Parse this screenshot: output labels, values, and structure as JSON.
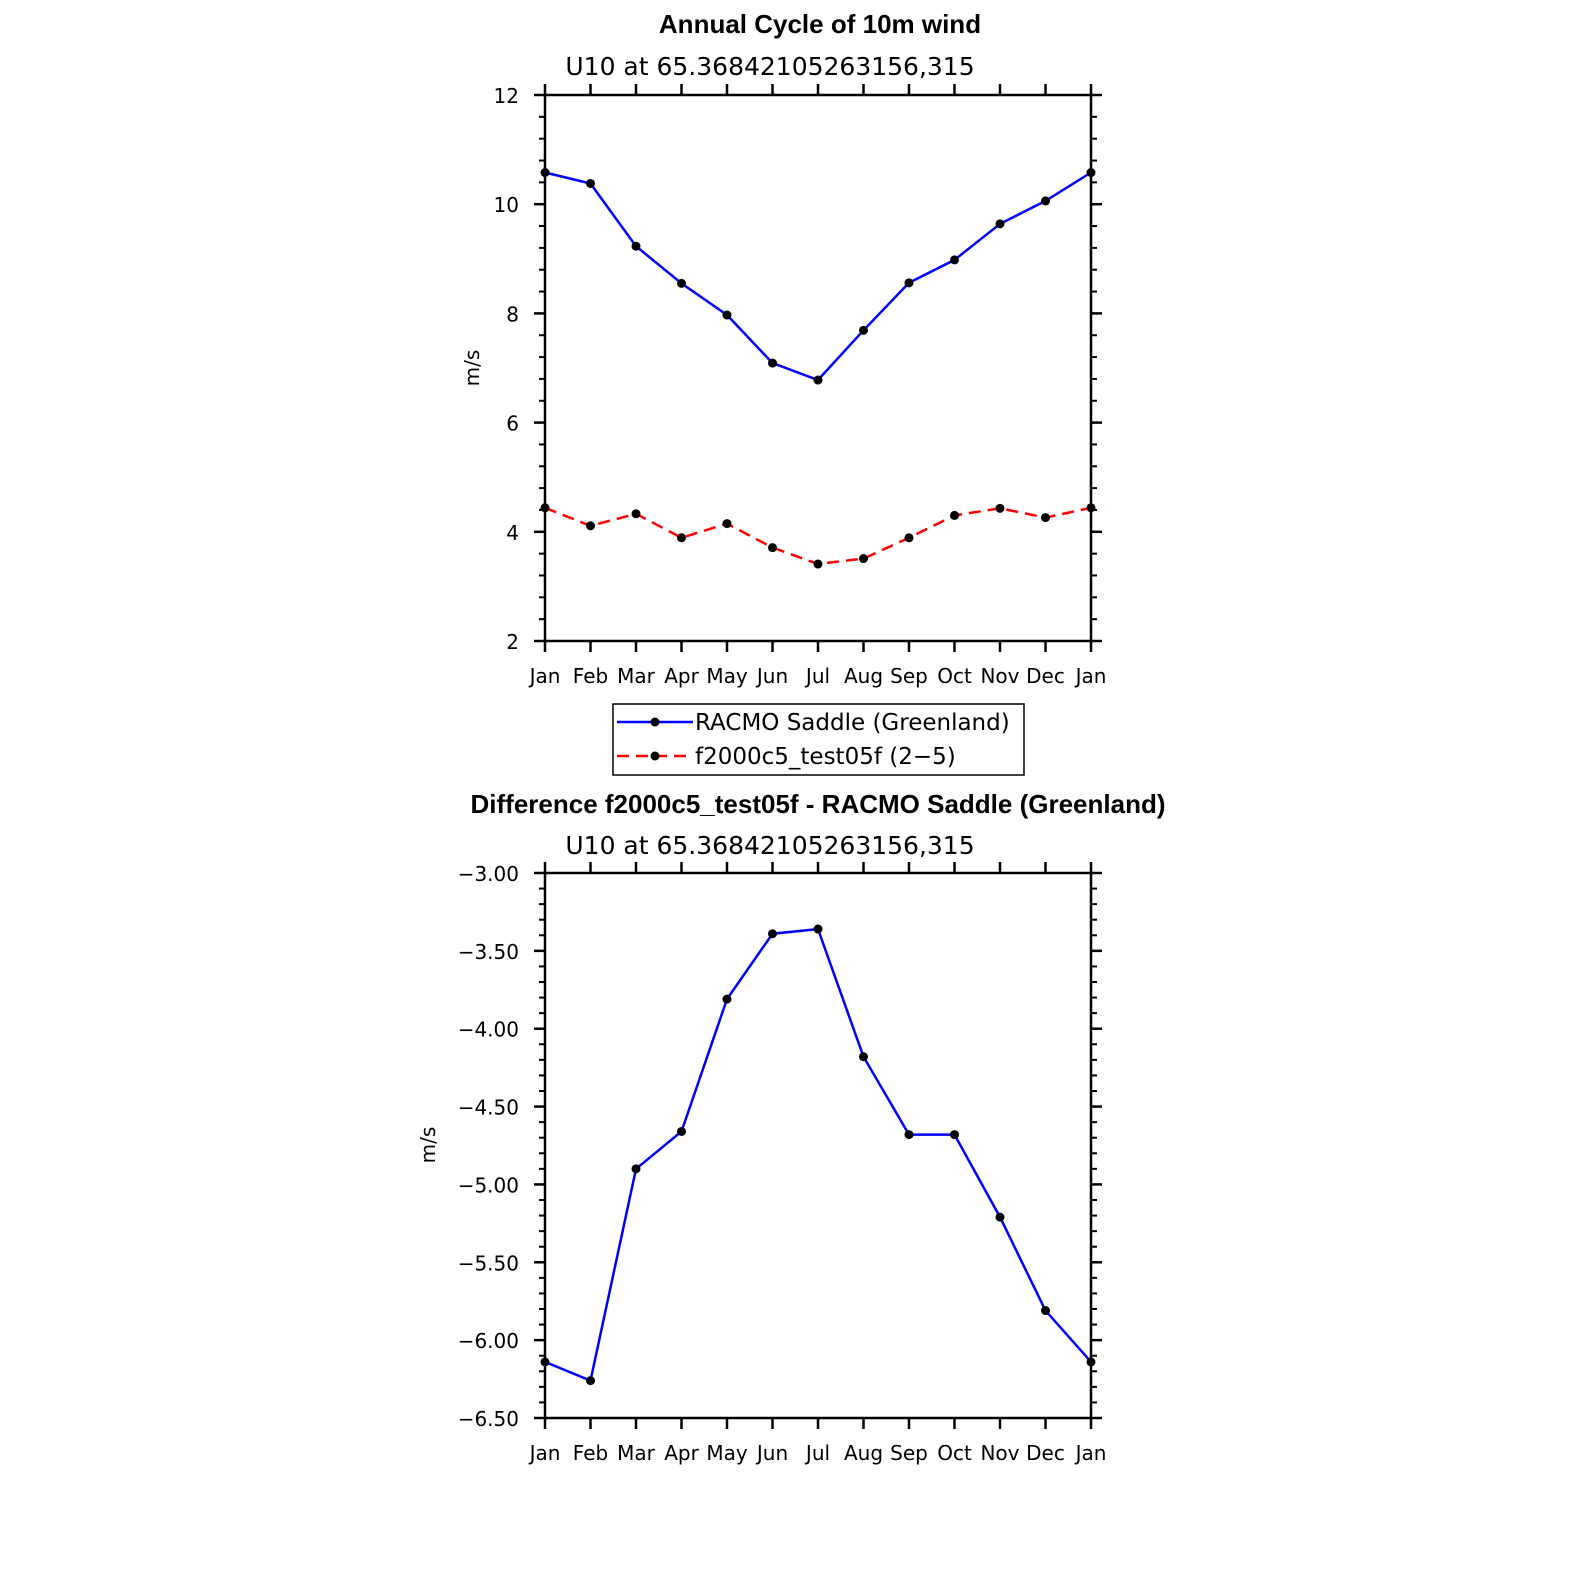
{
  "chart_data": [
    {
      "type": "line",
      "title": "Annual Cycle of 10m wind",
      "subtitle": "U10  at  65.36842105263156,315",
      "xlabel": "",
      "ylabel": "m/s",
      "categories": [
        "Jan",
        "Feb",
        "Mar",
        "Apr",
        "May",
        "Jun",
        "Jul",
        "Aug",
        "Sep",
        "Oct",
        "Nov",
        "Dec",
        "Jan"
      ],
      "ylim": [
        2,
        12
      ],
      "yticks": [
        "2",
        "4",
        "6",
        "8",
        "10",
        "12"
      ],
      "grid": false,
      "legend": "below",
      "series": [
        {
          "name": "RACMO Saddle (Greenland)",
          "color": "#0000ff",
          "dash": "solid",
          "values": [
            10.58,
            10.38,
            9.23,
            8.55,
            7.97,
            7.09,
            6.78,
            7.69,
            8.56,
            8.98,
            9.64,
            10.06,
            10.58
          ]
        },
        {
          "name": "f2000c5_test05f (2−5)",
          "color": "#ff0000",
          "dash": "dashed",
          "values": [
            4.44,
            4.11,
            4.33,
            3.89,
            4.15,
            3.71,
            3.41,
            3.51,
            3.89,
            4.3,
            4.43,
            4.26,
            4.44
          ]
        }
      ]
    },
    {
      "type": "line",
      "title": "Difference f2000c5_test05f - RACMO Saddle (Greenland)",
      "subtitle": "U10  at  65.36842105263156,315",
      "xlabel": "",
      "ylabel": "m/s",
      "categories": [
        "Jan",
        "Feb",
        "Mar",
        "Apr",
        "May",
        "Jun",
        "Jul",
        "Aug",
        "Sep",
        "Oct",
        "Nov",
        "Dec",
        "Jan"
      ],
      "ylim": [
        -6.5,
        -3.0
      ],
      "yticks": [
        "−3.00",
        "−3.50",
        "−4.00",
        "−4.50",
        "−5.00",
        "−5.50",
        "−6.00",
        "−6.50"
      ],
      "grid": false,
      "series": [
        {
          "name": "Difference",
          "color": "#0000ff",
          "dash": "solid",
          "values": [
            -6.14,
            -6.26,
            -4.9,
            -4.66,
            -3.81,
            -3.39,
            -3.36,
            -4.18,
            -4.68,
            -4.68,
            -5.21,
            -5.81,
            -6.14
          ]
        }
      ]
    }
  ]
}
